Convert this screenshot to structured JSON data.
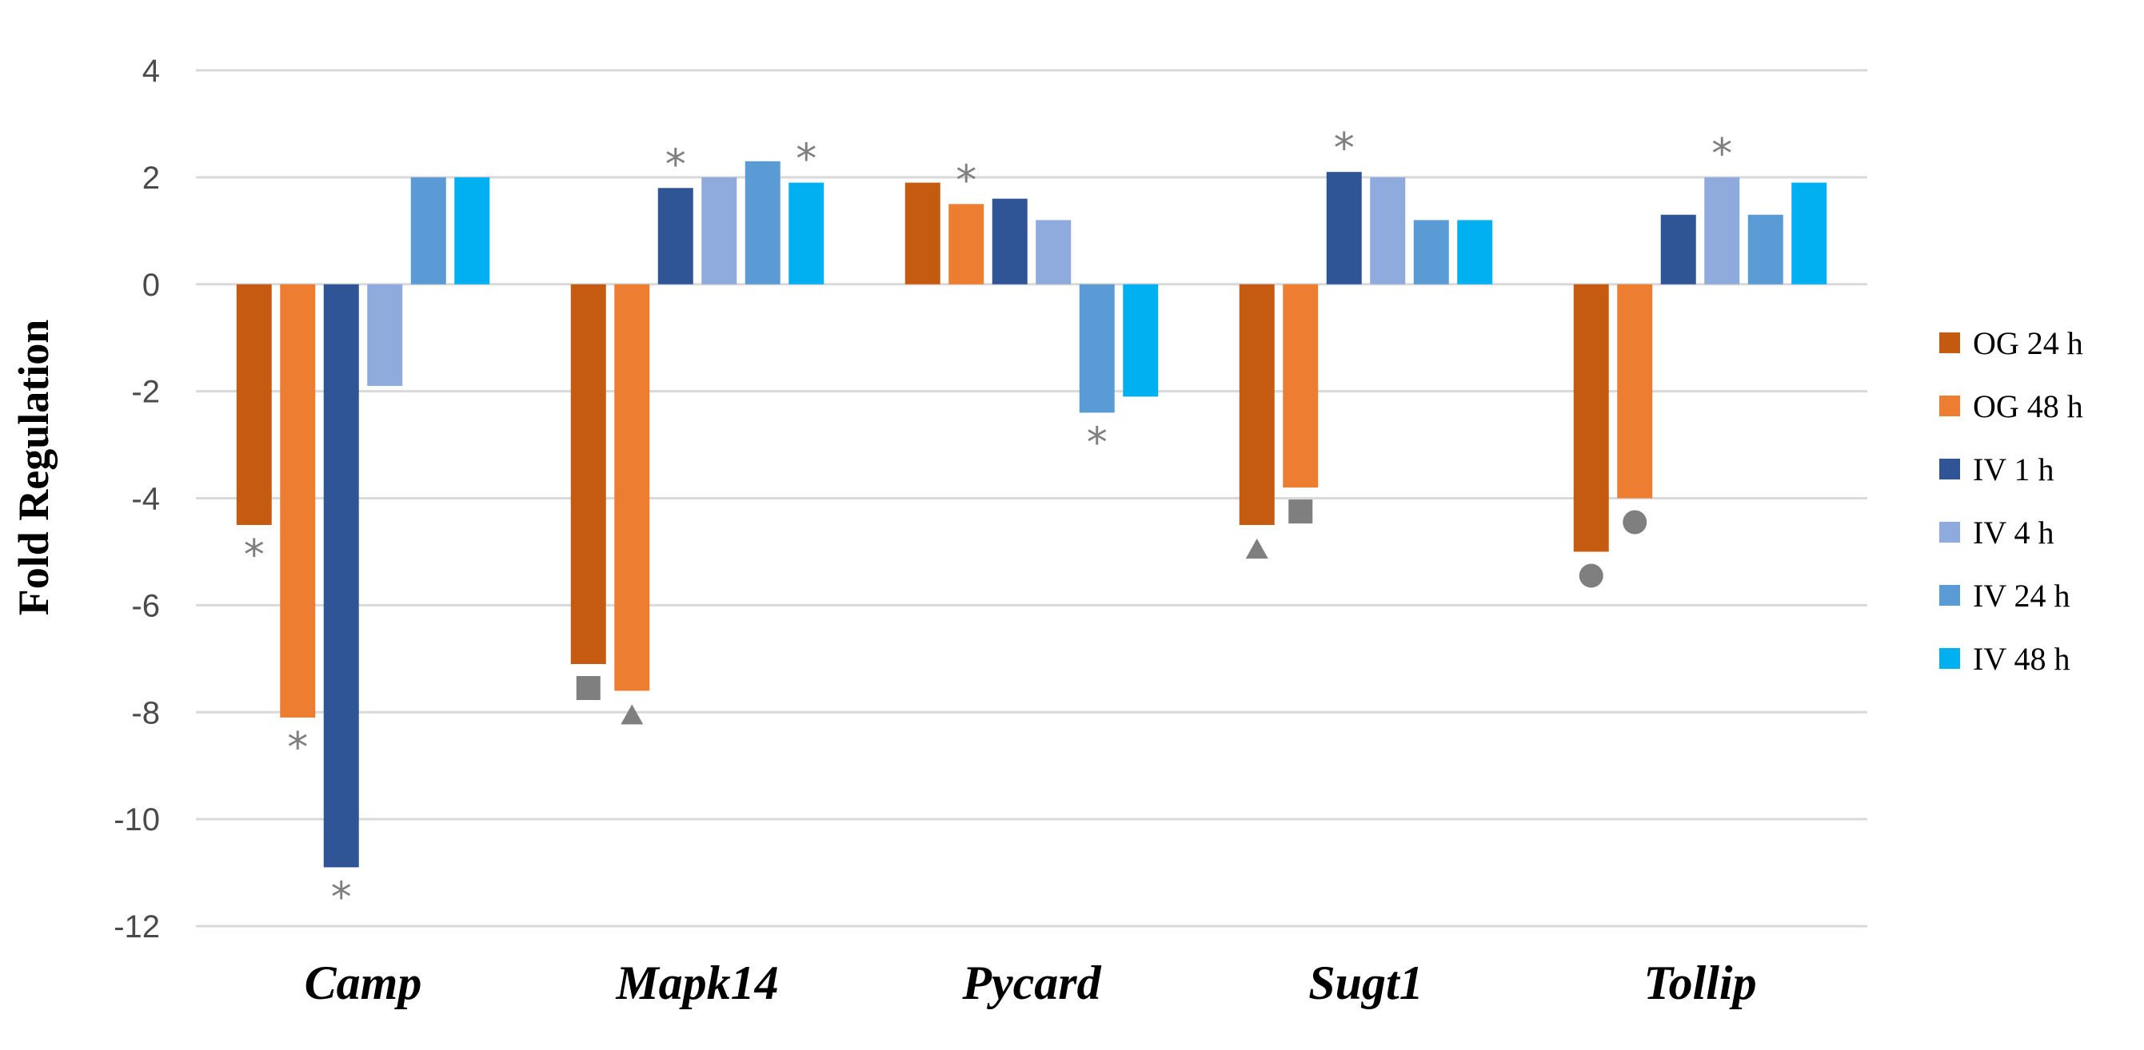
{
  "chart_data": {
    "type": "bar",
    "title": "",
    "xlabel": "",
    "ylabel": "Fold Regulation",
    "ylim": [
      -12,
      4
    ],
    "yticks": [
      4,
      2,
      0,
      -2,
      -4,
      -6,
      -8,
      -10,
      -12
    ],
    "grid": true,
    "legend_position": "right",
    "categories": [
      "Camp",
      "Mapk14",
      "Pycard",
      "Sugt1",
      "Tollip"
    ],
    "series": [
      {
        "name": "OG 24 h",
        "color": "#C55A11",
        "values": [
          -4.5,
          -7.1,
          1.9,
          -4.5,
          -5.0
        ]
      },
      {
        "name": "OG 48 h",
        "color": "#ED7D31",
        "values": [
          -8.1,
          -7.6,
          1.5,
          -3.8,
          -4.0
        ]
      },
      {
        "name": "IV 1 h",
        "color": "#2F5597",
        "values": [
          -10.9,
          1.8,
          1.6,
          2.1,
          1.3
        ]
      },
      {
        "name": "IV 4 h",
        "color": "#8FAADC",
        "values": [
          -1.9,
          2.0,
          1.2,
          2.0,
          2.0
        ]
      },
      {
        "name": "IV 24 h",
        "color": "#5B9BD5",
        "values": [
          2.0,
          2.3,
          -2.4,
          1.2,
          1.3
        ]
      },
      {
        "name": "IV 48 h",
        "color": "#00B0F0",
        "values": [
          2.0,
          1.9,
          -2.1,
          1.2,
          1.9
        ]
      }
    ],
    "annotations": [
      {
        "category": "Camp",
        "series": "OG 24 h",
        "marker": "asterisk"
      },
      {
        "category": "Camp",
        "series": "OG 48 h",
        "marker": "asterisk"
      },
      {
        "category": "Camp",
        "series": "IV 1 h",
        "marker": "asterisk"
      },
      {
        "category": "Mapk14",
        "series": "OG 24 h",
        "marker": "square"
      },
      {
        "category": "Mapk14",
        "series": "OG 48 h",
        "marker": "triangle"
      },
      {
        "category": "Mapk14",
        "series": "IV 1 h",
        "marker": "asterisk"
      },
      {
        "category": "Mapk14",
        "series": "IV 48 h",
        "marker": "asterisk"
      },
      {
        "category": "Pycard",
        "series": "OG 48 h",
        "marker": "asterisk"
      },
      {
        "category": "Pycard",
        "series": "IV 24 h",
        "marker": "asterisk"
      },
      {
        "category": "Sugt1",
        "series": "OG 24 h",
        "marker": "triangle"
      },
      {
        "category": "Sugt1",
        "series": "OG 48 h",
        "marker": "square"
      },
      {
        "category": "Sugt1",
        "series": "IV 1 h",
        "marker": "asterisk"
      },
      {
        "category": "Tollip",
        "series": "OG 24 h",
        "marker": "circle"
      },
      {
        "category": "Tollip",
        "series": "OG 48 h",
        "marker": "circle"
      },
      {
        "category": "Tollip",
        "series": "IV 4 h",
        "marker": "asterisk"
      }
    ],
    "marker_color": "#7f7f7f"
  }
}
